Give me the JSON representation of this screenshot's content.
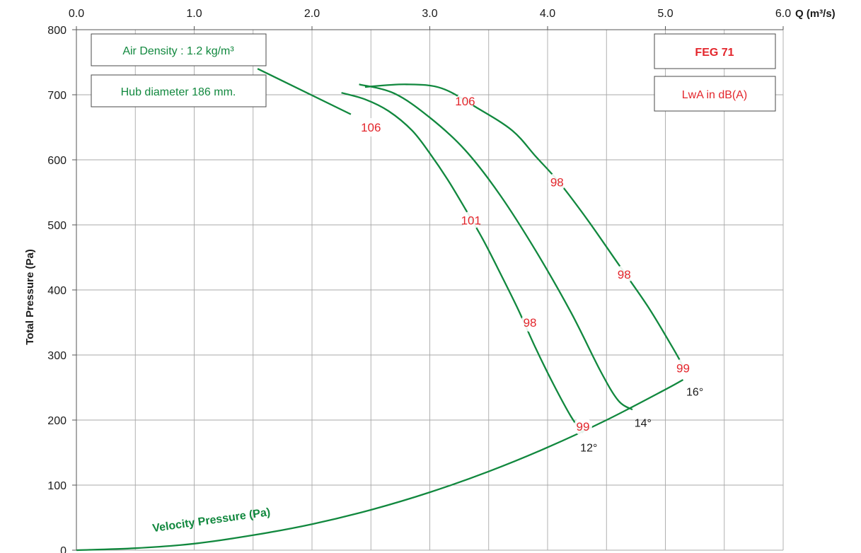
{
  "colors": {
    "curve": "#11883e",
    "label_red": "#e3262c",
    "label_gap": "#b7dcc4",
    "grid": "#a8a8a8"
  },
  "info_boxes": {
    "air_density": "Air Density : 1.2 kg/m³",
    "hub_diameter": "Hub diameter 186 mm.",
    "model": "FEG 71",
    "unit_note": "LwA in dB(A)"
  },
  "chart_data": {
    "type": "line",
    "title": "",
    "xlabel": "Q (m³/s)",
    "ylabel": "Total Pressure (Pa)",
    "xlim": [
      0,
      6
    ],
    "ylim": [
      0,
      800
    ],
    "x_ticks": [
      0,
      1,
      2,
      3,
      4,
      5,
      6
    ],
    "x_tick_labels": [
      "0.0",
      "1.0",
      "2.0",
      "3.0",
      "4.0",
      "5.0",
      "6.0"
    ],
    "y_ticks": [
      0,
      100,
      200,
      300,
      400,
      500,
      600,
      700,
      800
    ],
    "y_tick_labels": [
      "0",
      "100",
      "200",
      "300",
      "400",
      "500",
      "600",
      "700",
      "800"
    ],
    "x_axis_position": "top",
    "grid": true,
    "series": [
      {
        "name": "12°",
        "x": [
          2.25,
          2.45,
          2.65,
          2.85,
          3.0,
          3.15,
          3.3,
          3.45,
          3.6,
          3.75,
          3.9,
          4.05,
          4.2,
          4.3
        ],
        "y": [
          703,
          693,
          675,
          645,
          610,
          570,
          525,
          478,
          425,
          370,
          310,
          255,
          205,
          180
        ],
        "sound": [
          {
            "x": 2.5,
            "y": 650,
            "label": "106"
          },
          {
            "x": 3.35,
            "y": 507,
            "label": "101"
          },
          {
            "x": 3.85,
            "y": 350,
            "label": "98"
          },
          {
            "x": 4.3,
            "y": 190,
            "label": "99"
          }
        ],
        "angle_label": "12°",
        "angle_at": {
          "x": 4.35,
          "y": 158
        }
      },
      {
        "name": "14°",
        "x": [
          2.4,
          2.7,
          3.0,
          3.3,
          3.6,
          3.9,
          4.2,
          4.45,
          4.6,
          4.72
        ],
        "y": [
          716,
          702,
          665,
          615,
          545,
          460,
          365,
          275,
          230,
          216
        ],
        "sound": [],
        "angle_label": "14°",
        "angle_at": {
          "x": 4.81,
          "y": 196
        }
      },
      {
        "name": "16°",
        "x": [
          2.45,
          2.8,
          3.1,
          3.4,
          3.7,
          3.9,
          4.1,
          4.35,
          4.6,
          4.85,
          5.05,
          5.15
        ],
        "y": [
          712,
          716,
          710,
          680,
          645,
          605,
          565,
          505,
          440,
          375,
          315,
          283
        ],
        "sound": [
          {
            "x": 3.3,
            "y": 690,
            "label": "106"
          },
          {
            "x": 4.08,
            "y": 566,
            "label": "98"
          },
          {
            "x": 4.65,
            "y": 424,
            "label": "98"
          },
          {
            "x": 5.15,
            "y": 280,
            "label": "99"
          }
        ],
        "angle_label": "16°",
        "angle_at": {
          "x": 5.25,
          "y": 244
        }
      },
      {
        "name": "Velocity Pressure (Pa)",
        "x": [
          0,
          0.5,
          1.0,
          1.5,
          2.0,
          2.5,
          3.0,
          3.5,
          4.0,
          4.5,
          5.0,
          5.15
        ],
        "y": [
          0,
          3,
          10,
          23,
          40,
          62,
          89,
          121,
          158,
          200,
          247,
          262
        ],
        "sound": []
      }
    ],
    "air_density_leader": {
      "from": {
        "x": 1.55,
        "y": 740
      },
      "to": {
        "x": 2.33,
        "y": 670
      }
    },
    "velocity_label": "Velocity Pressure (Pa)",
    "velocity_label_at": {
      "x": 0.65,
      "y": 28
    },
    "velocity_label_rotate": -8
  }
}
